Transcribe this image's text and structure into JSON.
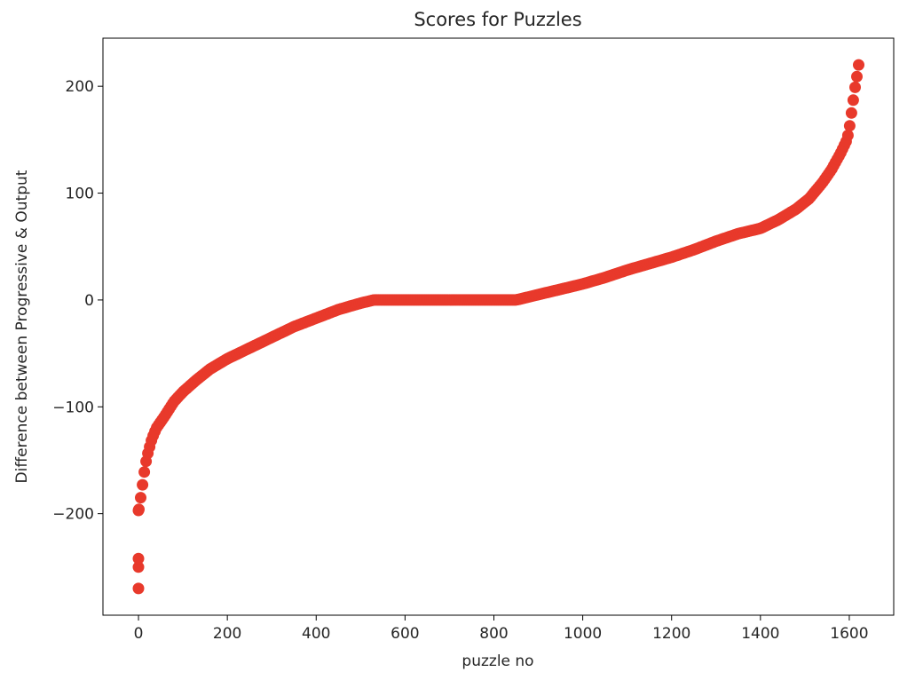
{
  "chart_data": {
    "type": "scatter",
    "title": "Scores for Puzzles",
    "xlabel": "puzzle no",
    "ylabel": "Difference between Progressive & Output",
    "xlim": [
      -80,
      1700
    ],
    "ylim": [
      -295,
      245
    ],
    "xticks": [
      0,
      200,
      400,
      600,
      800,
      1000,
      1200,
      1400,
      1600
    ],
    "yticks": [
      -200,
      -100,
      0,
      100,
      200
    ],
    "xtick_labels": [
      "0",
      "200",
      "400",
      "600",
      "800",
      "1000",
      "1200",
      "1400",
      "1600"
    ],
    "ytick_labels": [
      "−200",
      "−100",
      "0",
      "100",
      "200"
    ],
    "grid": false,
    "marker_color": "#e8392b",
    "curve_points": [
      [
        0,
        -270
      ],
      [
        0,
        -250
      ],
      [
        0,
        -242
      ],
      [
        0,
        -197
      ],
      [
        2,
        -195
      ],
      [
        5,
        -185
      ],
      [
        10,
        -170
      ],
      [
        15,
        -155
      ],
      [
        20,
        -145
      ],
      [
        30,
        -130
      ],
      [
        40,
        -120
      ],
      [
        60,
        -108
      ],
      [
        80,
        -95
      ],
      [
        100,
        -86
      ],
      [
        130,
        -75
      ],
      [
        160,
        -65
      ],
      [
        200,
        -55
      ],
      [
        250,
        -45
      ],
      [
        300,
        -35
      ],
      [
        350,
        -25
      ],
      [
        400,
        -17
      ],
      [
        450,
        -9
      ],
      [
        500,
        -3
      ],
      [
        530,
        0
      ],
      [
        600,
        0
      ],
      [
        700,
        0
      ],
      [
        800,
        0
      ],
      [
        850,
        0
      ],
      [
        900,
        5
      ],
      [
        950,
        10
      ],
      [
        1000,
        15
      ],
      [
        1050,
        21
      ],
      [
        1100,
        28
      ],
      [
        1150,
        34
      ],
      [
        1200,
        40
      ],
      [
        1250,
        47
      ],
      [
        1300,
        55
      ],
      [
        1350,
        62
      ],
      [
        1400,
        67
      ],
      [
        1440,
        75
      ],
      [
        1480,
        85
      ],
      [
        1510,
        95
      ],
      [
        1540,
        110
      ],
      [
        1560,
        122
      ],
      [
        1580,
        137
      ],
      [
        1595,
        150
      ],
      [
        1600,
        160
      ],
      [
        1605,
        175
      ],
      [
        1610,
        190
      ],
      [
        1615,
        205
      ],
      [
        1620,
        215
      ],
      [
        1622,
        225
      ]
    ],
    "n_points": 1622
  }
}
